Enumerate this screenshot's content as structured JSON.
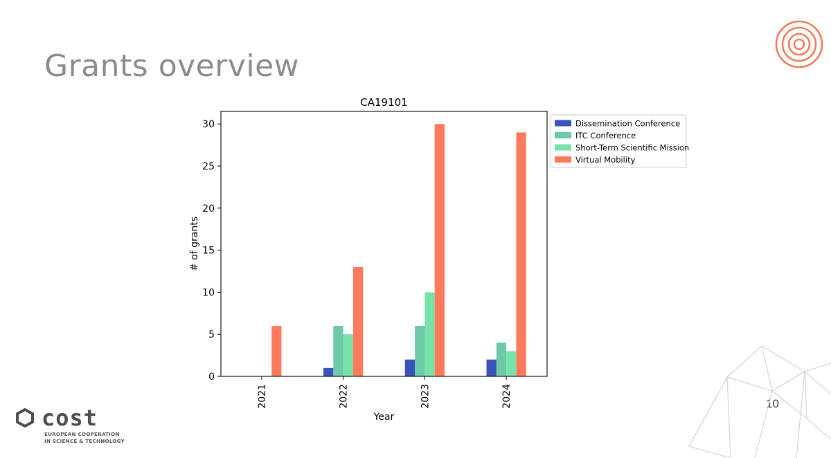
{
  "slide": {
    "title": "Grants overview",
    "page_number": "10"
  },
  "logo": {
    "wordmark": "cost",
    "line1": "EUROPEAN COOPERATION",
    "line2": "IN SCIENCE & TECHNOLOGY",
    "accent_color": "#f07c5b"
  },
  "chart_data": {
    "type": "bar",
    "title": "CA19101",
    "xlabel": "Year",
    "ylabel": "# of grants",
    "categories": [
      "2021",
      "2022",
      "2023",
      "2024"
    ],
    "ylim": [
      0,
      31.5
    ],
    "yticks": [
      0,
      5,
      10,
      15,
      20,
      25,
      30
    ],
    "grid": false,
    "legend_position": "outside-top-right",
    "series": [
      {
        "name": "Dissemination Conference",
        "color": "#3a53b8",
        "values": [
          0,
          1,
          2,
          2
        ]
      },
      {
        "name": "ITC Conference",
        "color": "#6dc9a8",
        "values": [
          0,
          6,
          6,
          4
        ]
      },
      {
        "name": "Short-Term Scientific Mission",
        "color": "#77e3a9",
        "values": [
          0,
          5,
          10,
          3
        ]
      },
      {
        "name": "Virtual Mobility",
        "color": "#ff7a5c",
        "values": [
          6,
          13,
          30,
          29
        ]
      }
    ]
  }
}
